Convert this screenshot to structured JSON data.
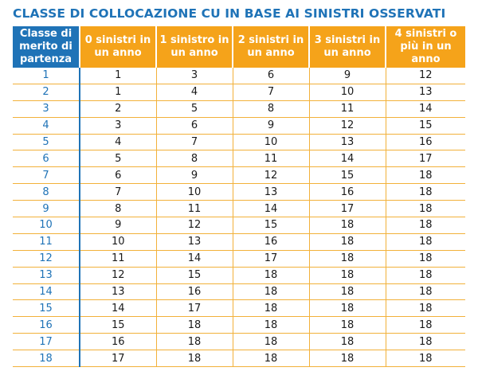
{
  "title": "CLASSE DI COLLOCAZIONE CU IN BASE AI SINISTRI OSSERVATI",
  "colors": {
    "blue": "#1f73b7",
    "orange": "#f5a31a"
  },
  "headers": [
    "Classe di merito di partenza",
    "0 sinistri in un anno",
    "1 sinistro in un anno",
    "2 sinistri in un anno",
    "3 sinistri in un anno",
    "4 sinistri o più in un anno"
  ],
  "rows": [
    [
      "1",
      "1",
      "3",
      "6",
      "9",
      "12"
    ],
    [
      "2",
      "1",
      "4",
      "7",
      "10",
      "13"
    ],
    [
      "3",
      "2",
      "5",
      "8",
      "11",
      "14"
    ],
    [
      "4",
      "3",
      "6",
      "9",
      "12",
      "15"
    ],
    [
      "5",
      "4",
      "7",
      "10",
      "13",
      "16"
    ],
    [
      "6",
      "5",
      "8",
      "11",
      "14",
      "17"
    ],
    [
      "7",
      "6",
      "9",
      "12",
      "15",
      "18"
    ],
    [
      "8",
      "7",
      "10",
      "13",
      "16",
      "18"
    ],
    [
      "9",
      "8",
      "11",
      "14",
      "17",
      "18"
    ],
    [
      "10",
      "9",
      "12",
      "15",
      "18",
      "18"
    ],
    [
      "11",
      "10",
      "13",
      "16",
      "18",
      "18"
    ],
    [
      "12",
      "11",
      "14",
      "17",
      "18",
      "18"
    ],
    [
      "13",
      "12",
      "15",
      "18",
      "18",
      "18"
    ],
    [
      "14",
      "13",
      "16",
      "18",
      "18",
      "18"
    ],
    [
      "15",
      "14",
      "17",
      "18",
      "18",
      "18"
    ],
    [
      "16",
      "15",
      "18",
      "18",
      "18",
      "18"
    ],
    [
      "17",
      "16",
      "18",
      "18",
      "18",
      "18"
    ],
    [
      "18",
      "17",
      "18",
      "18",
      "18",
      "18"
    ]
  ]
}
